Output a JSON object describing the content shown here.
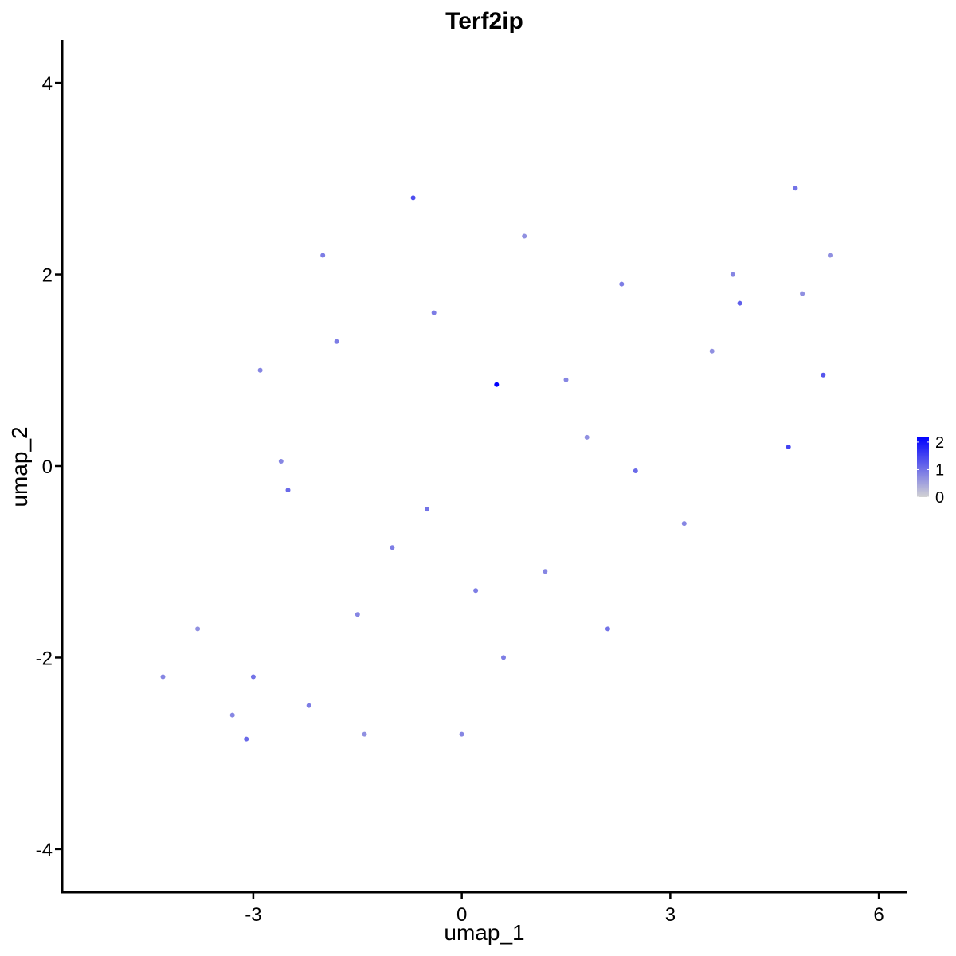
{
  "chart_data": {
    "type": "scatter",
    "title": "Terf2ip",
    "xlabel": "umap_1",
    "ylabel": "umap_2",
    "xlim": [
      -5.75,
      6.4
    ],
    "ylim": [
      -4.45,
      4.45
    ],
    "xticks": [
      -3,
      0,
      3,
      6
    ],
    "yticks": [
      -4,
      -2,
      0,
      2,
      4
    ],
    "xtick_labels": [
      "-3",
      "0",
      "3",
      "6"
    ],
    "ytick_labels": [
      "-4",
      "-2",
      "0",
      "2",
      "4"
    ],
    "grid": false,
    "legend": {
      "placement": "right",
      "range": [
        0,
        2.2
      ],
      "ticks": [
        0,
        1,
        2
      ],
      "tick_labels": [
        "0",
        "1",
        "2"
      ]
    },
    "colors": {
      "low": "#d3d3d3",
      "high": "#0000ff"
    },
    "series": [
      {
        "values": [
          {
            "x": 0.5,
            "y": 0.85,
            "v": 2.3
          },
          {
            "x": 4.7,
            "y": 0.2,
            "v": 1.5
          },
          {
            "x": -0.7,
            "y": 2.8,
            "v": 1.4
          },
          {
            "x": 5.2,
            "y": 0.95,
            "v": 1.3
          },
          {
            "x": 4.0,
            "y": 1.7,
            "v": 1.2
          },
          {
            "x": 2.5,
            "y": -0.05,
            "v": 1.1
          },
          {
            "x": -0.5,
            "y": -0.45,
            "v": 1.0
          },
          {
            "x": -2.5,
            "y": -0.25,
            "v": 1.1
          },
          {
            "x": -3.0,
            "y": -2.2,
            "v": 1.0
          },
          {
            "x": -3.1,
            "y": -2.85,
            "v": 1.1
          },
          {
            "x": 2.1,
            "y": -1.7,
            "v": 1.0
          },
          {
            "x": 4.8,
            "y": 2.9,
            "v": 1.0
          },
          {
            "x": -2.0,
            "y": 2.2,
            "v": 0.9
          },
          {
            "x": -0.4,
            "y": 1.6,
            "v": 0.9
          },
          {
            "x": 1.5,
            "y": 0.9,
            "v": 0.8
          },
          {
            "x": 3.9,
            "y": 2.0,
            "v": 0.8
          },
          {
            "x": -1.8,
            "y": 1.3,
            "v": 0.9
          },
          {
            "x": -2.6,
            "y": 0.05,
            "v": 0.8
          },
          {
            "x": 0.2,
            "y": -1.3,
            "v": 0.9
          },
          {
            "x": -1.5,
            "y": -1.55,
            "v": 0.8
          },
          {
            "x": -2.2,
            "y": -2.5,
            "v": 0.9
          },
          {
            "x": -3.3,
            "y": -2.6,
            "v": 0.8
          },
          {
            "x": 0.6,
            "y": -2.0,
            "v": 0.9
          },
          {
            "x": 1.2,
            "y": -1.1,
            "v": 0.8
          },
          {
            "x": 3.2,
            "y": -0.6,
            "v": 0.8
          },
          {
            "x": 2.3,
            "y": 1.9,
            "v": 0.9
          },
          {
            "x": -1.0,
            "y": -0.85,
            "v": 0.9
          },
          {
            "x": 0.9,
            "y": 2.4,
            "v": 0.7
          },
          {
            "x": -2.9,
            "y": 1.0,
            "v": 0.8
          },
          {
            "x": -3.8,
            "y": -1.7,
            "v": 0.7
          },
          {
            "x": -4.3,
            "y": -2.2,
            "v": 0.8
          },
          {
            "x": -1.4,
            "y": -2.8,
            "v": 0.7
          },
          {
            "x": 0.0,
            "y": -2.8,
            "v": 0.8
          },
          {
            "x": 4.9,
            "y": 1.8,
            "v": 0.7
          },
          {
            "x": 5.3,
            "y": 2.2,
            "v": 0.7
          },
          {
            "x": 3.6,
            "y": 1.2,
            "v": 0.7
          },
          {
            "x": 1.8,
            "y": 0.3,
            "v": 0.7
          }
        ]
      }
    ]
  }
}
